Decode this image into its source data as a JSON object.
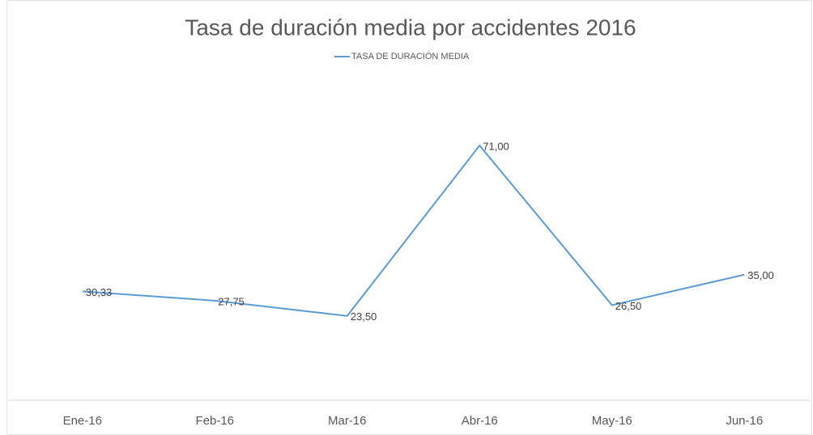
{
  "chart_data": {
    "type": "line",
    "title": "Tasa de duración media por accidentes 2016",
    "categories": [
      "Ene-16",
      "Feb-16",
      "Mar-16",
      "Abr-16",
      "May-16",
      "Jun-16"
    ],
    "series": [
      {
        "name": "TASA DE DURACIÓN MEDIA",
        "color": "#5b9bd5",
        "values": [
          30.33,
          27.75,
          23.5,
          71,
          26.5,
          35
        ],
        "value_labels": [
          "30,33",
          "27,75",
          "23,50",
          "71,00",
          "26,50",
          "35,00"
        ]
      }
    ],
    "ylim": [
      0,
      80
    ],
    "legend": "top"
  }
}
